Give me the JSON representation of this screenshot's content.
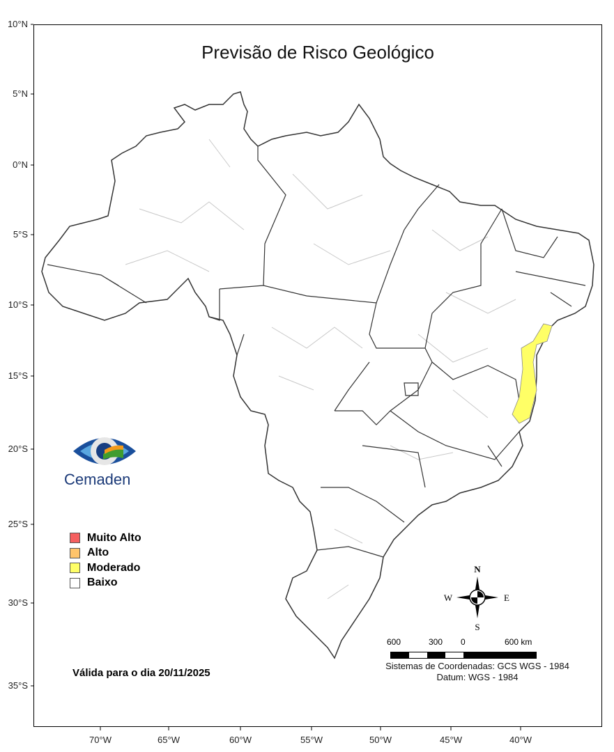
{
  "title": "Previsão de Risco Geológico",
  "lat_ticks": [
    "10°N",
    "5°N",
    "0°N",
    "5°S",
    "10°S",
    "15°S",
    "20°S",
    "25°S",
    "30°S",
    "35°S"
  ],
  "lon_ticks": [
    "70°W",
    "65°W",
    "60°W",
    "55°W",
    "50°W",
    "45°W",
    "40°W"
  ],
  "logo": {
    "text": "Cemaden"
  },
  "legend": [
    {
      "label": "Muito Alto",
      "color": "#f55f5f"
    },
    {
      "label": "Alto",
      "color": "#ffc46b"
    },
    {
      "label": "Moderado",
      "color": "#ffff66"
    },
    {
      "label": "Baixo",
      "color": "#ffffff"
    }
  ],
  "valid_date": "Válida para o dia 20/11/2025",
  "compass": {
    "n": "N",
    "s": "S",
    "e": "E",
    "w": "W"
  },
  "scale_labels": [
    "600",
    "300",
    "0",
    "600 km"
  ],
  "crs": "Sistemas de Coordenadas: GCS WGS - 1984",
  "datum": "Datum: WGS - 1984",
  "moderate_area": "Bahia / Espírito Santo coastal strip"
}
